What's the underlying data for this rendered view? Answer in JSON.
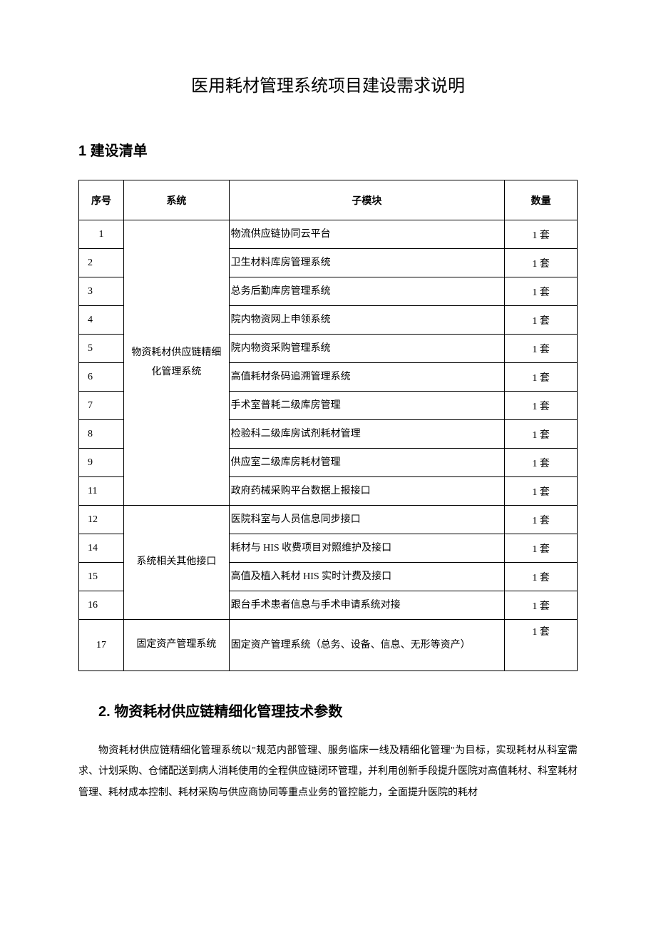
{
  "title": "医用耗材管理系统项目建设需求说明",
  "section1": {
    "heading": "1 建设清单",
    "table": {
      "headers": {
        "seq": "序号",
        "system": "系统",
        "submodule": "子模块",
        "qty": "数量"
      },
      "groups": [
        {
          "system": "物资耗材供应链精细化管理系统",
          "rows": [
            {
              "seq": "1",
              "sub": "物流供应链协同云平台",
              "qty": "1 套"
            },
            {
              "seq": "2",
              "sub": "卫生材料库房管理系统",
              "qty": "1 套"
            },
            {
              "seq": "3",
              "sub": "总务后勤库房管理系统",
              "qty": "1 套"
            },
            {
              "seq": "4",
              "sub": "院内物资网上申领系统",
              "qty": "1 套"
            },
            {
              "seq": "5",
              "sub": "院内物资采购管理系统",
              "qty": "1 套"
            },
            {
              "seq": "6",
              "sub": "高值耗材条码追溯管理系统",
              "qty": "1 套"
            },
            {
              "seq": "7",
              "sub": "手术室普耗二级库房管理",
              "qty": "1 套"
            },
            {
              "seq": "8",
              "sub": "检验科二级库房试剂耗材管理",
              "qty": "1 套"
            },
            {
              "seq": "9",
              "sub": "供应室二级库房耗材管理",
              "qty": "1 套"
            },
            {
              "seq": "11",
              "sub": "政府药械采购平台数据上报接口",
              "qty": "1 套"
            }
          ]
        },
        {
          "system": "系统相关其他接口",
          "rows": [
            {
              "seq": "12",
              "sub": "医院科室与人员信息同步接口",
              "qty": "1 套"
            },
            {
              "seq": "14",
              "sub": "耗材与 HIS 收费项目对照维护及接口",
              "qty": "1 套"
            },
            {
              "seq": "15",
              "sub": "高值及植入耗材 HIS 实时计费及接口",
              "qty": "1 套"
            },
            {
              "seq": "16",
              "sub": "跟台手术患者信息与手术申请系统对接",
              "qty": "1 套"
            }
          ]
        },
        {
          "system": "固定资产管理系统",
          "rows": [
            {
              "seq": "17",
              "sub": "固定资产管理系统（总务、设备、信息、无形等资产）",
              "qty": "1 套"
            }
          ]
        }
      ]
    }
  },
  "section2": {
    "heading": "2. 物资耗材供应链精细化管理技术参数",
    "paragraph": "物资耗材供应链精细化管理系统以\"规范内部管理、服务临床一线及精细化管理\"为目标，实现耗材从科室需求、计划采购、仓储配送到病人消耗使用的全程供应链闭环管理，并利用创新手段提升医院对高值耗材、科室耗材管理、耗材成本控制、耗材采购与供应商协同等重点业务的管控能力，全面提升医院的耗材"
  },
  "style": {
    "page_bg": "#ffffff",
    "text_color": "#000000",
    "border_color": "#000000",
    "title_fontsize": 24,
    "heading_fontsize": 20,
    "body_fontsize": 14,
    "line_height": 2.1
  }
}
